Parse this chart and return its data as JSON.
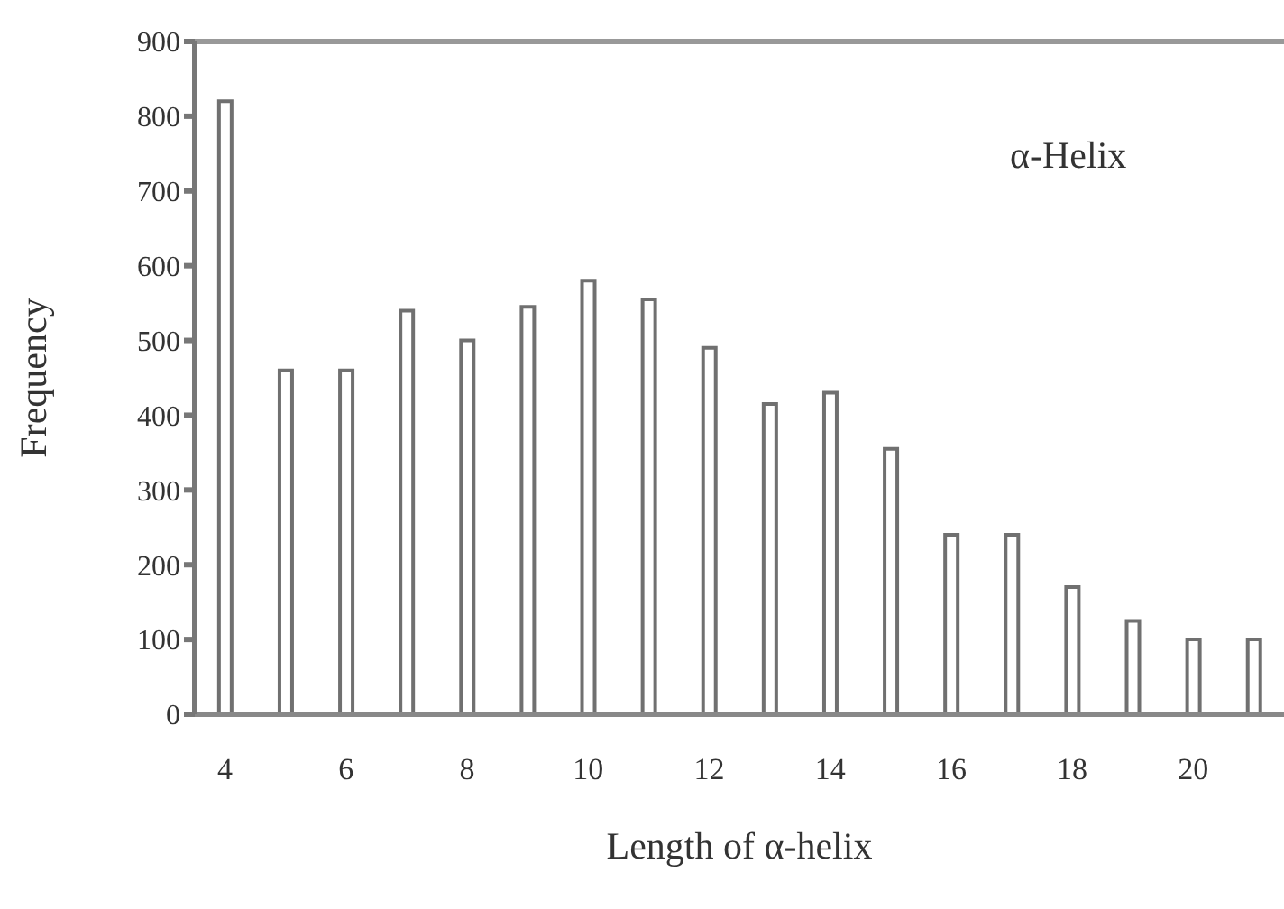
{
  "chart_data": {
    "type": "bar",
    "xlabel": "Length of α-helix",
    "ylabel": "Frequency",
    "annotations": [
      "α-Helix"
    ],
    "categories": [
      "4",
      null,
      "6",
      null,
      "8",
      null,
      "10",
      null,
      "12",
      null,
      "14",
      null,
      "16",
      null,
      "18",
      null,
      "20",
      null
    ],
    "values": [
      820,
      460,
      460,
      540,
      500,
      545,
      580,
      555,
      490,
      415,
      430,
      355,
      240,
      240,
      170,
      125,
      100,
      100
    ],
    "color": "#707070",
    "ylim": [
      0,
      900
    ],
    "yticks": [
      0,
      100,
      200,
      300,
      400,
      500,
      600,
      700,
      800,
      900
    ],
    "grid": false,
    "legend": false
  }
}
